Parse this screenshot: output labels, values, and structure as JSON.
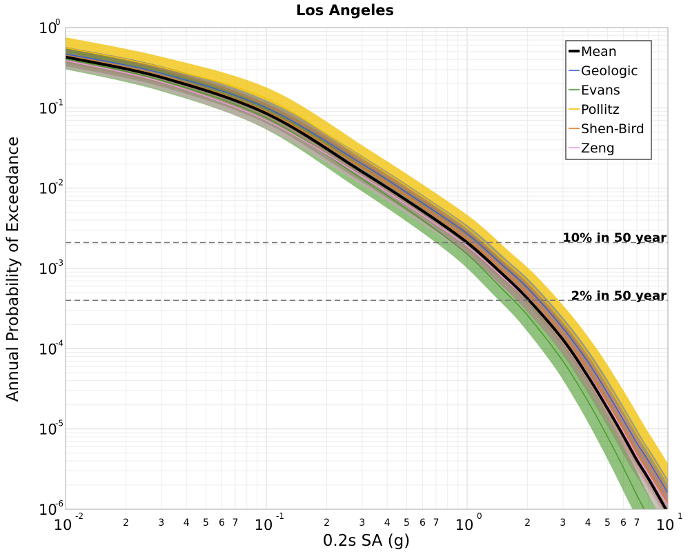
{
  "chart_data": {
    "type": "line",
    "title": "Los Angeles",
    "xlabel": "0.2s SA (g)",
    "ylabel": "Annual Probability of Exceedance",
    "x_scale": "log",
    "y_scale": "log",
    "xlim": [
      0.01,
      10
    ],
    "ylim": [
      1e-06,
      1
    ],
    "grid": true,
    "legend_position": "top-right",
    "x_ticks": [
      {
        "base": "10",
        "exp": "-2"
      },
      {
        "base": "10",
        "exp": "-1"
      },
      {
        "base": "10",
        "exp": "0"
      },
      {
        "base": "10",
        "exp": "1"
      }
    ],
    "y_ticks": [
      {
        "base": "10",
        "exp": "0"
      },
      {
        "base": "10",
        "exp": "-1"
      },
      {
        "base": "10",
        "exp": "-2"
      },
      {
        "base": "10",
        "exp": "-3"
      },
      {
        "base": "10",
        "exp": "-4"
      },
      {
        "base": "10",
        "exp": "-5"
      },
      {
        "base": "10",
        "exp": "-6"
      }
    ],
    "x_minor_tick_labels": [
      "2",
      "3",
      "4",
      "5",
      "6",
      "7"
    ],
    "reference_lines": [
      {
        "label": "10% in 50 year",
        "y": 0.0021
      },
      {
        "label": "2% in 50 year",
        "y": 0.0004
      }
    ],
    "x": [
      0.01,
      0.03,
      0.1,
      0.3,
      0.6,
      1.0,
      1.5,
      2.0,
      3.0,
      4.0,
      5.0,
      6.0,
      7.0,
      8.0,
      10.0
    ],
    "series": [
      {
        "name": "Mean",
        "color": "#000000",
        "values": [
          0.43,
          0.24,
          0.085,
          0.016,
          0.0052,
          0.0021,
          0.00085,
          0.00042,
          0.00013,
          4.5e-05,
          1.8e-05,
          8.2e-06,
          4.1e-06,
          2.4e-06,
          9e-07
        ]
      },
      {
        "name": "Geologic",
        "color": "#3a5fcd",
        "values": [
          0.47,
          0.27,
          0.1,
          0.02,
          0.0065,
          0.0027,
          0.0011,
          0.00057,
          0.00018,
          6.8e-05,
          2.8e-05,
          1.3e-05,
          6.7e-06,
          4e-06,
          1.6e-06
        ]
      },
      {
        "name": "Evans",
        "color": "#4a9a2a",
        "values": [
          0.41,
          0.22,
          0.075,
          0.013,
          0.004,
          0.0015,
          0.00055,
          0.00026,
          7e-05,
          2.2e-05,
          8e-06,
          3.3e-06,
          1.5e-06,
          8e-07,
          3e-07
        ]
      },
      {
        "name": "Pollitz",
        "color": "#f0c000",
        "values": [
          0.56,
          0.32,
          0.13,
          0.024,
          0.0078,
          0.0032,
          0.0013,
          0.00068,
          0.00022,
          8.5e-05,
          3.6e-05,
          1.7e-05,
          8.8e-06,
          5.2e-06,
          2.1e-06
        ]
      },
      {
        "name": "Shen-Bird",
        "color": "#e07b20",
        "values": [
          0.45,
          0.25,
          0.09,
          0.018,
          0.0058,
          0.0023,
          0.00095,
          0.00049,
          0.00015,
          5.5e-05,
          2.2e-05,
          1e-05,
          5.1e-06,
          3e-06,
          1.2e-06
        ]
      },
      {
        "name": "Zeng",
        "color": "#ee99dd",
        "values": [
          0.39,
          0.21,
          0.07,
          0.014,
          0.0046,
          0.0019,
          0.00078,
          0.0004,
          0.00013,
          4.8e-05,
          2e-05,
          9.2e-06,
          4.6e-06,
          2.7e-06,
          1.1e-06
        ]
      }
    ]
  }
}
